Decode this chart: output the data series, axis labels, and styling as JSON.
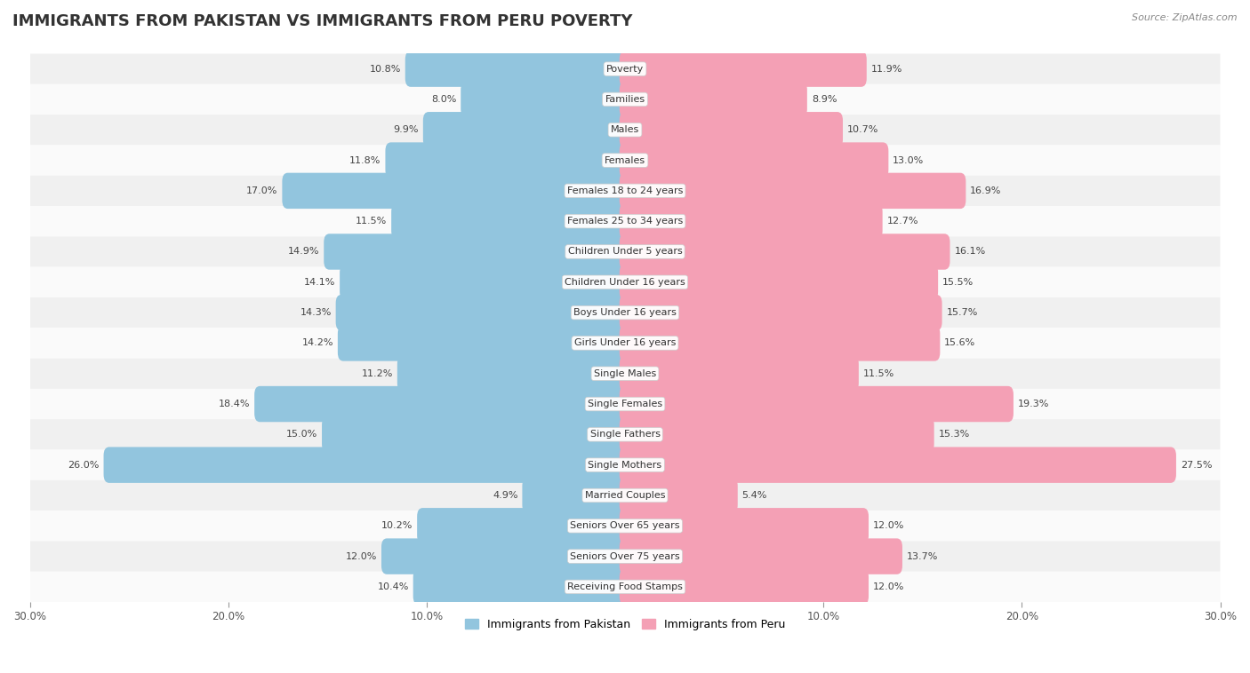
{
  "title": "IMMIGRANTS FROM PAKISTAN VS IMMIGRANTS FROM PERU POVERTY",
  "source": "Source: ZipAtlas.com",
  "categories": [
    "Poverty",
    "Families",
    "Males",
    "Females",
    "Females 18 to 24 years",
    "Females 25 to 34 years",
    "Children Under 5 years",
    "Children Under 16 years",
    "Boys Under 16 years",
    "Girls Under 16 years",
    "Single Males",
    "Single Females",
    "Single Fathers",
    "Single Mothers",
    "Married Couples",
    "Seniors Over 65 years",
    "Seniors Over 75 years",
    "Receiving Food Stamps"
  ],
  "pakistan_values": [
    10.8,
    8.0,
    9.9,
    11.8,
    17.0,
    11.5,
    14.9,
    14.1,
    14.3,
    14.2,
    11.2,
    18.4,
    15.0,
    26.0,
    4.9,
    10.2,
    12.0,
    10.4
  ],
  "peru_values": [
    11.9,
    8.9,
    10.7,
    13.0,
    16.9,
    12.7,
    16.1,
    15.5,
    15.7,
    15.6,
    11.5,
    19.3,
    15.3,
    27.5,
    5.4,
    12.0,
    13.7,
    12.0
  ],
  "pakistan_color": "#92C5DE",
  "peru_color": "#F4A0B5",
  "pakistan_label": "Immigrants from Pakistan",
  "peru_label": "Immigrants from Peru",
  "background_color": "#ffffff",
  "row_color_odd": "#f0f0f0",
  "row_color_even": "#fafafa",
  "xlim": 30.0,
  "bar_height": 0.62,
  "title_fontsize": 13,
  "label_fontsize": 8.0,
  "value_fontsize": 8.0,
  "tick_fontsize": 8.5
}
